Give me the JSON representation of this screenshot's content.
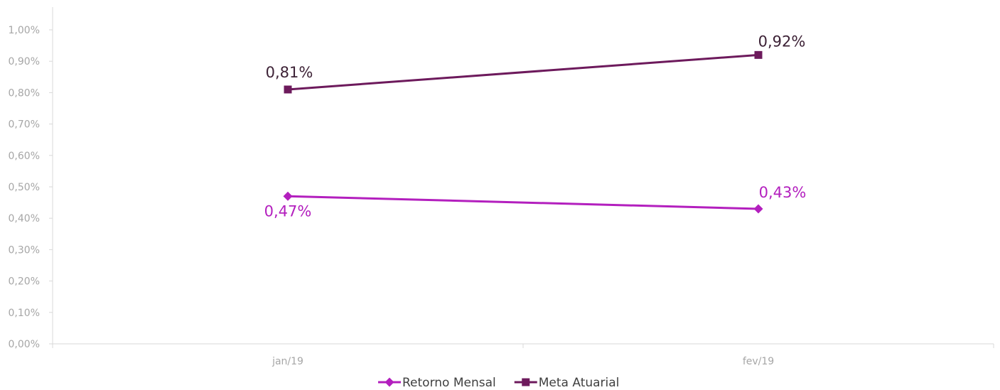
{
  "chart_data": {
    "type": "line",
    "categories": [
      "jan/19",
      "fev/19"
    ],
    "series": [
      {
        "name": "Retorno Mensal",
        "values": [
          0.47,
          0.43
        ],
        "labels": [
          "0,47%",
          "0,43%"
        ],
        "color": "#b31fbe",
        "marker": "diamond"
      },
      {
        "name": "Meta Atuarial",
        "values": [
          0.81,
          0.92
        ],
        "labels": [
          "0,81%",
          "0,92%"
        ],
        "color": "#6d1a5c",
        "marker": "square"
      }
    ],
    "y_ticks": [
      "0,00%",
      "0,10%",
      "0,20%",
      "0,30%",
      "0,40%",
      "0,50%",
      "0,60%",
      "0,70%",
      "0,80%",
      "0,90%",
      "1,00%"
    ],
    "ylim": [
      0,
      1.0
    ],
    "y_unit": "%",
    "grid": false,
    "legend_position": "bottom",
    "title": "",
    "xlabel": "",
    "ylabel": ""
  }
}
